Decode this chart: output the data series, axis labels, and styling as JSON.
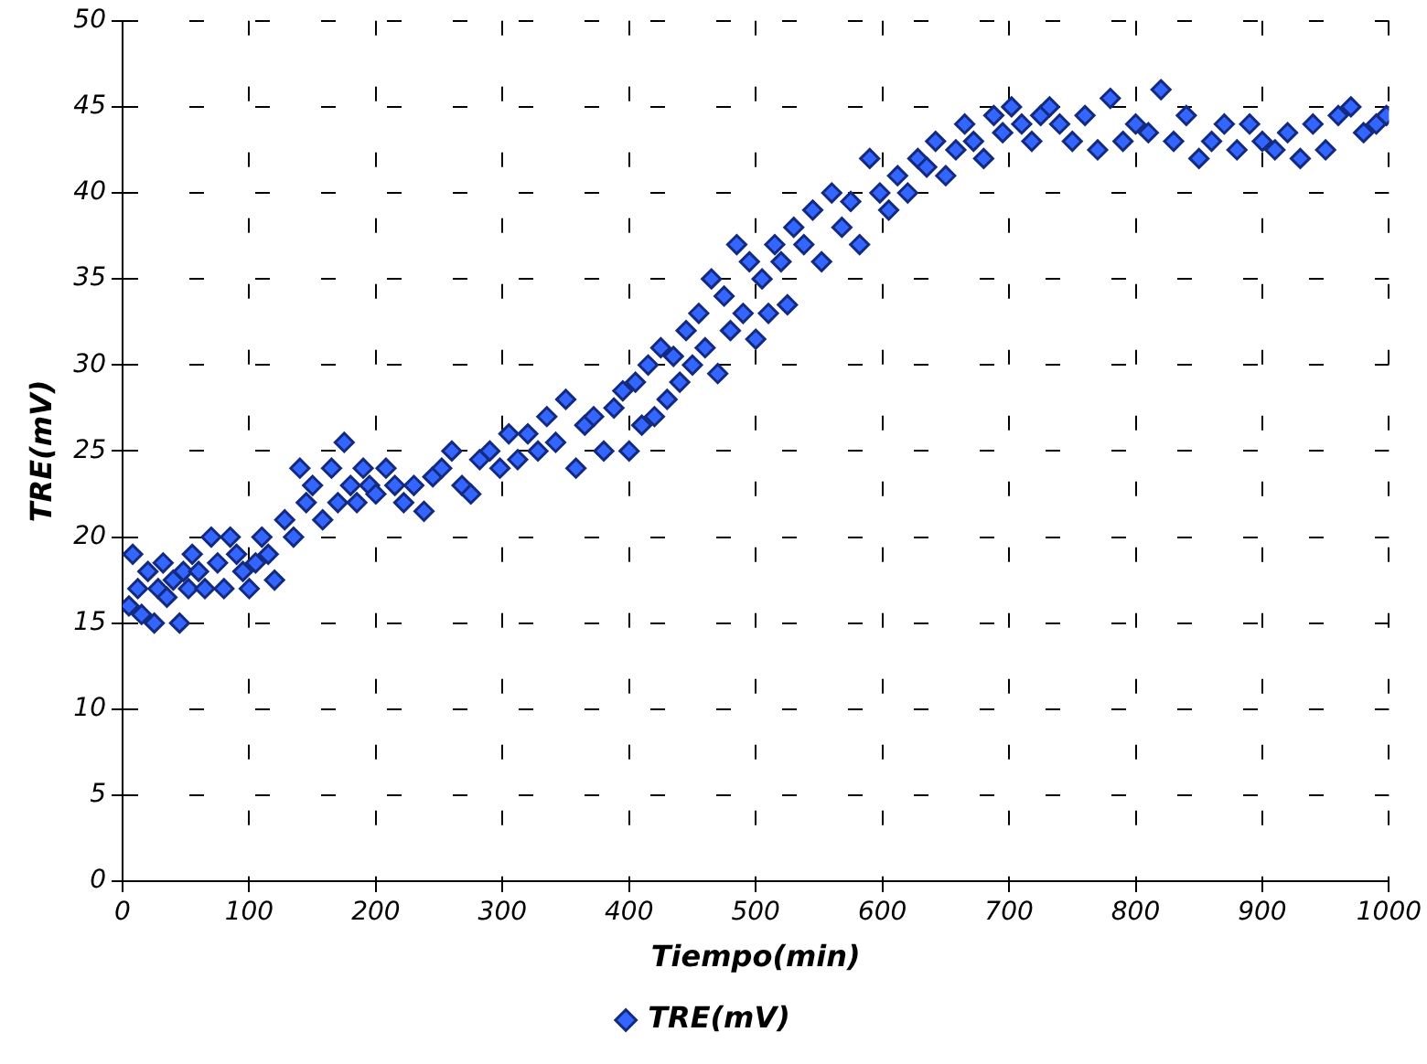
{
  "chart_data": {
    "type": "scatter",
    "xlabel": "Tiempo(min)",
    "ylabel": "TRE(mV)",
    "marker": "diamond",
    "grid": true,
    "legend": "bottom",
    "xlim": [
      0,
      1000
    ],
    "ylim": [
      0,
      50
    ],
    "xticks": [
      0,
      100,
      200,
      300,
      400,
      500,
      600,
      700,
      800,
      900,
      1000
    ],
    "yticks": [
      0,
      5,
      10,
      15,
      20,
      25,
      30,
      35,
      40,
      45,
      50
    ],
    "series": [
      {
        "name": "TRE(mV)",
        "color": "#3366ff",
        "x": [
          5,
          8,
          12,
          15,
          20,
          25,
          28,
          32,
          35,
          40,
          45,
          48,
          52,
          55,
          60,
          65,
          70,
          75,
          80,
          85,
          90,
          95,
          100,
          105,
          110,
          115,
          120,
          128,
          135,
          140,
          145,
          150,
          158,
          165,
          170,
          175,
          180,
          185,
          190,
          195,
          200,
          208,
          215,
          222,
          230,
          238,
          245,
          252,
          260,
          268,
          275,
          282,
          290,
          298,
          305,
          312,
          320,
          328,
          335,
          342,
          350,
          358,
          365,
          372,
          380,
          388,
          395,
          400,
          405,
          410,
          415,
          420,
          425,
          430,
          435,
          440,
          445,
          450,
          455,
          460,
          465,
          470,
          475,
          480,
          485,
          490,
          495,
          500,
          505,
          510,
          515,
          520,
          525,
          530,
          538,
          545,
          552,
          560,
          568,
          575,
          582,
          590,
          598,
          605,
          612,
          620,
          628,
          635,
          642,
          650,
          658,
          665,
          672,
          680,
          688,
          695,
          702,
          710,
          718,
          725,
          732,
          740,
          750,
          760,
          770,
          780,
          790,
          800,
          810,
          820,
          830,
          840,
          850,
          860,
          870,
          880,
          890,
          900,
          910,
          920,
          930,
          940,
          950,
          960,
          970,
          980,
          990,
          998
        ],
        "values": [
          16,
          19,
          17,
          15.5,
          18,
          15,
          17,
          18.5,
          16.5,
          17.5,
          15,
          18,
          17,
          19,
          18,
          17,
          20,
          18.5,
          17,
          20,
          19,
          18,
          17,
          18.5,
          20,
          19,
          17.5,
          21,
          20,
          24,
          22,
          23,
          21,
          24,
          22,
          25.5,
          23,
          22,
          24,
          23,
          22.5,
          24,
          23,
          22,
          23,
          21.5,
          23.5,
          24,
          25,
          23,
          22.5,
          24.5,
          25,
          24,
          26,
          24.5,
          26,
          25,
          27,
          25.5,
          28,
          24,
          26.5,
          27,
          25,
          27.5,
          28.5,
          25,
          29,
          26.5,
          30,
          27,
          31,
          28,
          30.5,
          29,
          32,
          30,
          33,
          31,
          35,
          29.5,
          34,
          32,
          37,
          33,
          36,
          31.5,
          35,
          33,
          37,
          36,
          33.5,
          38,
          37,
          39,
          36,
          40,
          38,
          39.5,
          37,
          42,
          40,
          39,
          41,
          40,
          42,
          41.5,
          43,
          41,
          42.5,
          44,
          43,
          42,
          44.5,
          43.5,
          45,
          44,
          43,
          44.5,
          45,
          44,
          43,
          44.5,
          42.5,
          45.5,
          43,
          44,
          43.5,
          46,
          43,
          44.5,
          42,
          43,
          44,
          42.5,
          44,
          43,
          42.5,
          43.5,
          42,
          44,
          42.5,
          44.5,
          45,
          43.5,
          44,
          44.5
        ]
      }
    ]
  }
}
